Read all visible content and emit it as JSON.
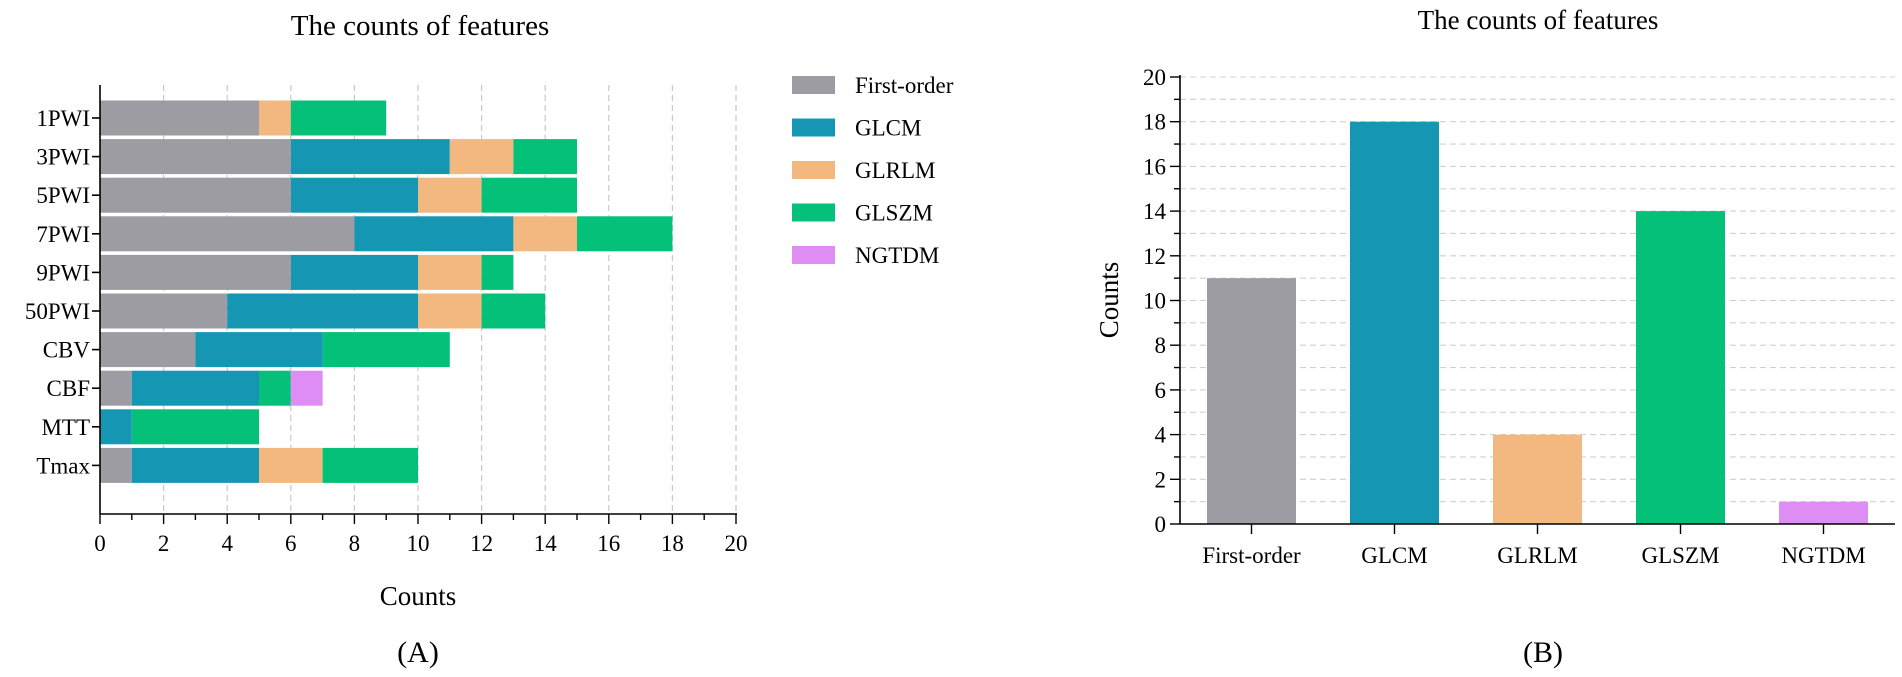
{
  "colors": {
    "First-order": "#9d9ca2",
    "GLCM": "#1597b4",
    "GLRLM": "#f2b87f",
    "GLSZM": "#05c078",
    "NGTDM": "#dd8df3"
  },
  "chart_data": [
    {
      "panel": "(A)",
      "type": "bar",
      "orientation": "horizontal",
      "stacked": true,
      "title": "The counts of features",
      "xlabel": "Counts",
      "ylabel": "",
      "xlim": [
        0,
        20
      ],
      "xticks": [
        "0",
        "2",
        "4",
        "6",
        "8",
        "10",
        "12",
        "14",
        "16",
        "18",
        "20"
      ],
      "grid": "vertical dashed",
      "legend": "right",
      "categories": [
        "1PWI",
        "3PWI",
        "5PWI",
        "7PWI",
        "9PWI",
        "50PWI",
        "CBV",
        "CBF",
        "MTT",
        "Tmax"
      ],
      "series": [
        {
          "name": "First-order",
          "values": [
            5,
            6,
            6,
            8,
            6,
            4,
            3,
            1,
            0,
            1
          ]
        },
        {
          "name": "GLCM",
          "values": [
            0,
            5,
            4,
            5,
            4,
            6,
            4,
            4,
            1,
            4
          ]
        },
        {
          "name": "GLRLM",
          "values": [
            1,
            2,
            2,
            2,
            2,
            2,
            0,
            0,
            0,
            2
          ]
        },
        {
          "name": "GLSZM",
          "values": [
            3,
            2,
            3,
            3,
            1,
            2,
            4,
            1,
            4,
            3
          ]
        },
        {
          "name": "NGTDM",
          "values": [
            0,
            0,
            0,
            0,
            0,
            0,
            0,
            1,
            0,
            0
          ]
        }
      ]
    },
    {
      "panel": "(B)",
      "type": "bar",
      "title": "The counts of features",
      "xlabel": "",
      "ylabel": "Counts",
      "ylim": [
        0,
        20
      ],
      "yticks": [
        "0",
        "2",
        "4",
        "6",
        "8",
        "10",
        "12",
        "14",
        "16",
        "18",
        "20"
      ],
      "grid": "horizontal dashed",
      "categories": [
        "First-order",
        "GLCM",
        "GLRLM",
        "GLSZM",
        "NGTDM"
      ],
      "values": [
        11,
        18,
        4,
        14,
        1
      ]
    }
  ]
}
